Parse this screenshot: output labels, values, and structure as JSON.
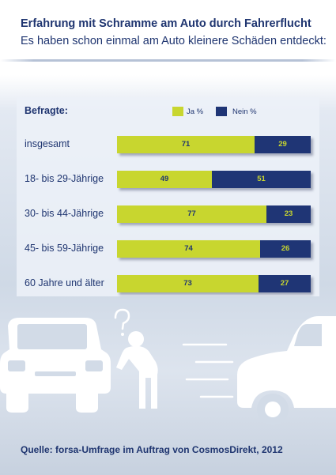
{
  "header": {
    "title": "Erfahrung mit Schramme am Auto durch Fahrerflucht",
    "subtitle": "Es haben schon einmal am Auto kleinere Schäden entdeckt:"
  },
  "legend": {
    "title": "Befragte:",
    "ja_label": "Ja %",
    "nein_label": "Nein %"
  },
  "colors": {
    "ja": "#c8d62f",
    "nein": "#1f3575",
    "text": "#1f3570"
  },
  "chart_data": {
    "type": "bar",
    "stacked": true,
    "orientation": "horizontal",
    "categories": [
      "insgesamt",
      "18- bis 29-Jährige",
      "30- bis 44-Jährige",
      "45- bis 59-Jährige",
      "60 Jahre und älter"
    ],
    "series": [
      {
        "name": "Ja %",
        "values": [
          71,
          49,
          77,
          74,
          73
        ]
      },
      {
        "name": "Nein %",
        "values": [
          29,
          51,
          23,
          26,
          27
        ]
      }
    ],
    "xlim": [
      0,
      100
    ]
  },
  "source": "Quelle: forsa-Umfrage im Auftrag von CosmosDirekt, 2012"
}
